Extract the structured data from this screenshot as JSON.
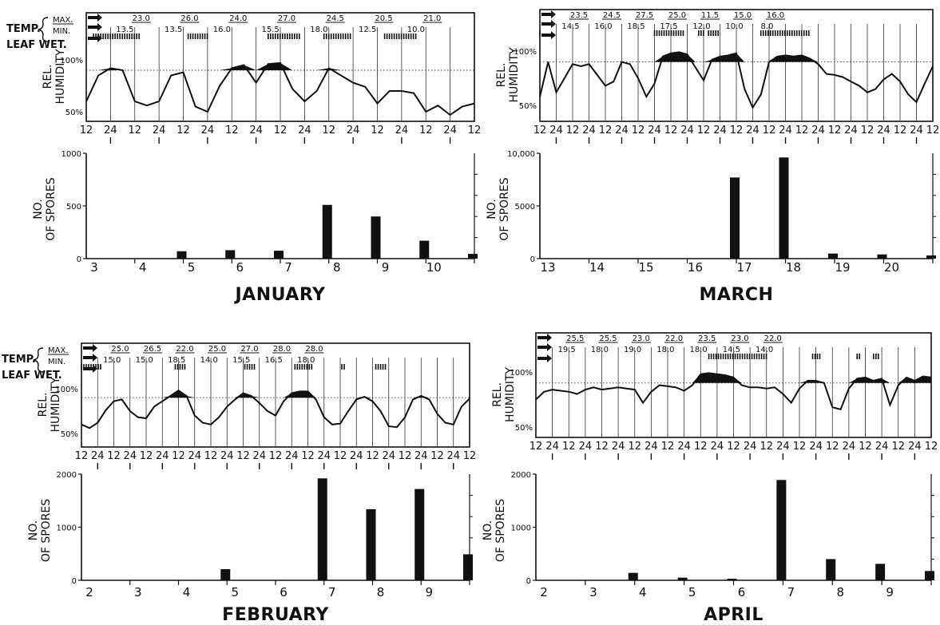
{
  "labels": {
    "temp": "TEMP.",
    "max": "MAX.",
    "min": "MIN.",
    "leaf_wet": "LEAF WET.",
    "rel_humidity": [
      "REL.",
      "HUMIDITY"
    ],
    "no_of_spores": [
      "NO.",
      "OF SPORES"
    ],
    "rh_ticks": [
      "100%",
      "50%"
    ],
    "hours": [
      "12",
      "24"
    ]
  },
  "chart_data": [
    {
      "type": "line",
      "panel": "January relative humidity",
      "month": "JANUARY",
      "xlabel": "hour",
      "ylabel": "REL. HUMIDITY",
      "ylim": [
        40,
        105
      ],
      "dotted_reference": 90,
      "temp_max": [
        "23.0",
        "26.0",
        "24.0",
        "27.0",
        "24.5",
        "20.5",
        "21.0"
      ],
      "temp_min": [
        "13.5",
        "13.5",
        "16.0",
        "15.5",
        "18.0",
        "12.5",
        "10.0"
      ],
      "leaf_wet_bars": [
        [
          0.3,
          2.2
        ],
        [
          4.2,
          5.0
        ],
        [
          7.5,
          8.8
        ],
        [
          9.8,
          10.9
        ],
        [
          12.3,
          13.6
        ]
      ],
      "x": [
        0,
        0.5,
        1,
        1.5,
        2,
        2.5,
        3,
        3.5,
        4,
        4.5,
        5,
        5.5,
        6,
        6.5,
        7,
        7.5,
        8,
        8.5,
        9,
        9.5,
        10,
        10.5,
        11,
        11.5,
        12,
        12.5,
        13,
        13.5,
        14,
        14.5,
        15,
        15.5,
        16
      ],
      "values": [
        60,
        85,
        92,
        90,
        60,
        56,
        60,
        85,
        88,
        55,
        50,
        75,
        92,
        95,
        78,
        96,
        97,
        72,
        60,
        70,
        92,
        85,
        78,
        74,
        58,
        70,
        70,
        68,
        50,
        56,
        47,
        55,
        58
      ]
    },
    {
      "type": "bar",
      "panel": "January spore counts",
      "month": "JANUARY",
      "ylabel": "NO. OF SPORES",
      "categories": [
        "3",
        "4",
        "5",
        "6",
        "7",
        "8",
        "9",
        "10"
      ],
      "values": [
        0,
        70,
        80,
        75,
        510,
        400,
        170,
        45
      ],
      "ylim": [
        0,
        1000
      ],
      "yticks": [
        "1000",
        "500",
        "0"
      ]
    },
    {
      "type": "line",
      "panel": "March relative humidity",
      "month": "MARCH",
      "xlabel": "hour",
      "ylabel": "REL. HUMIDITY",
      "ylim": [
        40,
        105
      ],
      "dotted_reference": 90,
      "temp_max": [
        "23.5",
        "24.5",
        "27.5",
        "25.0",
        "11.5",
        "15.0",
        "16.0"
      ],
      "temp_min": [
        "14.5",
        "16.0",
        "18.5",
        "17.5",
        "12.0",
        "10.0",
        "8.0"
      ],
      "leaf_wet_bars": [
        [
          0,
          0.1
        ],
        [
          7.0,
          8.8
        ],
        [
          9.7,
          10.1
        ],
        [
          10.3,
          11.0
        ],
        [
          13.5,
          16.5
        ]
      ],
      "x": [
        0,
        0.5,
        1,
        1.5,
        2,
        2.5,
        3,
        3.5,
        4,
        4.5,
        5,
        5.5,
        6,
        6.5,
        7,
        7.5,
        8,
        8.5,
        9,
        9.5,
        10,
        10.5,
        11,
        11.5,
        12,
        12.5,
        13,
        13.5,
        14,
        14.5,
        15,
        15.5,
        16,
        16.5,
        17,
        17.5,
        18,
        18.5,
        19,
        19.5,
        20,
        20.5,
        21,
        21.5,
        22,
        22.5,
        23,
        23.5,
        24
      ],
      "values": [
        58,
        90,
        62,
        75,
        88,
        86,
        88,
        78,
        68,
        72,
        90,
        88,
        75,
        58,
        70,
        95,
        98,
        99,
        97,
        85,
        73,
        92,
        95,
        96,
        98,
        65,
        48,
        60,
        90,
        95,
        96,
        95,
        96,
        93,
        88,
        79,
        78,
        76,
        72,
        68,
        62,
        65,
        74,
        79,
        72,
        60,
        53,
        70,
        86
      ]
    },
    {
      "type": "bar",
      "panel": "March spore counts",
      "month": "MARCH",
      "ylabel": "NO. OF SPORES",
      "categories": [
        "13",
        "14",
        "15",
        "16",
        "17",
        "18",
        "19",
        "20"
      ],
      "values": [
        0,
        0,
        0,
        7700,
        9600,
        480,
        400,
        300
      ],
      "ylim": [
        0,
        10000
      ],
      "yticks": [
        "10,000",
        "5000",
        "0"
      ]
    },
    {
      "type": "line",
      "panel": "February relative humidity",
      "month": "FEBRUARY",
      "xlabel": "hour",
      "ylabel": "REL. HUMIDITY",
      "ylim": [
        40,
        105
      ],
      "dotted_reference": 90,
      "temp_max": [
        "25.0",
        "26.5",
        "22.0",
        "25.0",
        "27.0",
        "28.0",
        "28.0"
      ],
      "temp_min": [
        "15.0",
        "15.0",
        "18.5",
        "14.0",
        "15.5",
        "16.5",
        "18.0"
      ],
      "leaf_wet_bars": [
        [
          0,
          1.3
        ],
        [
          5.8,
          6.4
        ],
        [
          10.1,
          10.8
        ],
        [
          13.2,
          14.3
        ],
        [
          16.1,
          16.3
        ],
        [
          18.2,
          18.9
        ]
      ],
      "x": [
        0,
        0.5,
        1,
        1.5,
        2,
        2.5,
        3,
        3.5,
        4,
        4.5,
        5,
        5.5,
        6,
        6.5,
        7,
        7.5,
        8,
        8.5,
        9,
        9.5,
        10,
        10.5,
        11,
        11.5,
        12,
        12.5,
        13,
        13.5,
        14,
        14.5,
        15,
        15.5,
        16,
        16.5,
        17,
        17.5,
        18,
        18.5,
        19,
        19.5,
        20,
        20.5,
        21,
        21.5,
        22,
        22.5,
        23,
        23.5,
        24
      ],
      "values": [
        60,
        56,
        62,
        76,
        86,
        88,
        75,
        68,
        67,
        80,
        86,
        92,
        98,
        92,
        70,
        62,
        60,
        68,
        80,
        88,
        95,
        92,
        84,
        75,
        70,
        86,
        95,
        97,
        97,
        88,
        68,
        60,
        61,
        75,
        88,
        91,
        86,
        75,
        58,
        57,
        68,
        88,
        92,
        88,
        72,
        62,
        60,
        80,
        89
      ]
    },
    {
      "type": "bar",
      "panel": "February spore counts",
      "month": "FEBRUARY",
      "ylabel": "NO. OF SPORES",
      "categories": [
        "2",
        "3",
        "4",
        "5",
        "6",
        "7",
        "8",
        "9"
      ],
      "values": [
        0,
        0,
        210,
        0,
        1920,
        1340,
        1720,
        490
      ],
      "ylim": [
        0,
        2000
      ],
      "yticks": [
        "2000",
        "1000",
        "0"
      ]
    },
    {
      "type": "line",
      "panel": "April relative humidity",
      "month": "APRIL",
      "xlabel": "hour",
      "ylabel": "REL. HUMIDITY",
      "ylim": [
        40,
        105
      ],
      "dotted_reference": 90,
      "temp_max": [
        "25.5",
        "25.5",
        "23.0",
        "22.0",
        "23.5",
        "23.0",
        "22.0"
      ],
      "temp_min": [
        "19.5",
        "18.0",
        "19.0",
        "18.0",
        "18.0",
        "14.5",
        "14.0"
      ],
      "leaf_wet_bars": [
        [
          10.5,
          14.0
        ],
        [
          16.8,
          17.3
        ],
        [
          19.5,
          19.7
        ],
        [
          20.5,
          20.8
        ]
      ],
      "x": [
        0,
        0.5,
        1,
        1.5,
        2,
        2.5,
        3,
        3.5,
        4,
        4.5,
        5,
        5.5,
        6,
        6.5,
        7,
        7.5,
        8,
        8.5,
        9,
        9.5,
        10,
        10.5,
        11,
        11.5,
        12,
        12.5,
        13,
        13.5,
        14,
        14.5,
        15,
        15.5,
        16,
        16.5,
        17,
        17.5,
        18,
        18.5,
        19,
        19.5,
        20,
        20.5,
        21,
        21.5,
        22,
        22.5,
        23,
        23.5,
        24
      ],
      "values": [
        75,
        82,
        84,
        83,
        82,
        80,
        84,
        86,
        84,
        85,
        86,
        85,
        84,
        72,
        82,
        88,
        87,
        86,
        83,
        88,
        98,
        99,
        98,
        97,
        95,
        88,
        86,
        86,
        85,
        86,
        80,
        72,
        85,
        92,
        92,
        90,
        68,
        66,
        85,
        94,
        95,
        92,
        94,
        70,
        88,
        95,
        92,
        96,
        95
      ]
    },
    {
      "type": "bar",
      "panel": "April spore counts",
      "month": "APRIL",
      "ylabel": "NO. OF SPORES",
      "categories": [
        "2",
        "3",
        "4",
        "5",
        "6",
        "7",
        "8",
        "9"
      ],
      "values": [
        0,
        140,
        50,
        30,
        1890,
        400,
        310,
        175
      ],
      "ylim": [
        0,
        2000
      ],
      "yticks": [
        "2000",
        "1000",
        "0"
      ]
    }
  ]
}
